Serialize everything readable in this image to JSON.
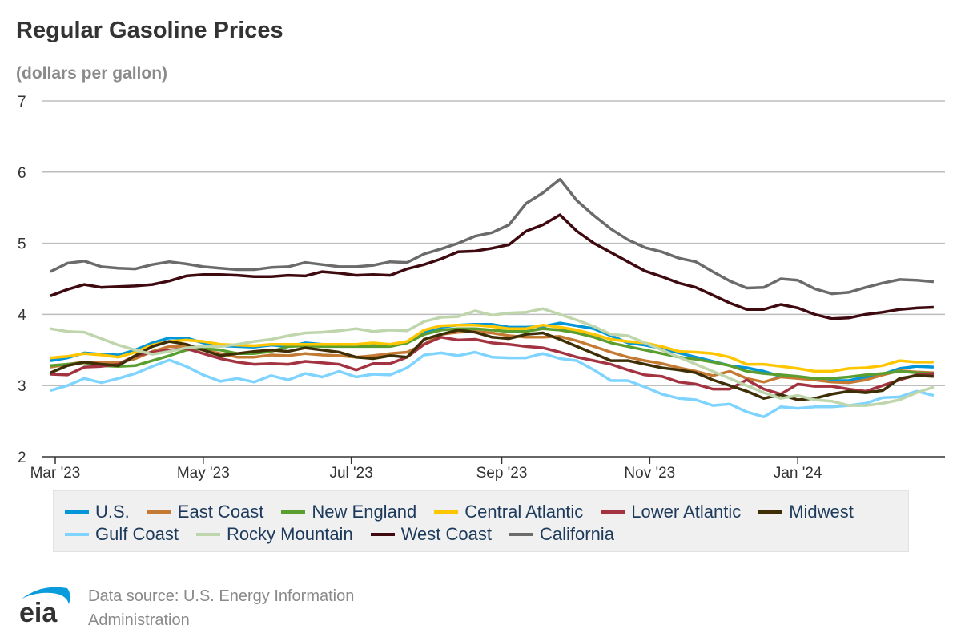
{
  "title": "Regular Gasoline Prices",
  "subtitle": "(dollars per gallon)",
  "source": "Data source: U.S. Energy Information Administration",
  "logo_text": "eia",
  "chart_data": {
    "type": "line",
    "title": "Regular Gasoline Prices",
    "ylabel": "(dollars per gallon)",
    "xlabel": "",
    "ylim": [
      2,
      7
    ],
    "yticks": [
      2,
      3,
      4,
      5,
      6,
      7
    ],
    "x_start": "2023-02-27",
    "x_frequency": "weekly",
    "xticks": [
      {
        "date": "2023-03-01",
        "label": "Mar '23"
      },
      {
        "date": "2023-05-01",
        "label": "May '23"
      },
      {
        "date": "2023-07-01",
        "label": "Jul '23"
      },
      {
        "date": "2023-09-01",
        "label": "Sep '23"
      },
      {
        "date": "2023-11-01",
        "label": "Nov '23"
      },
      {
        "date": "2024-01-01",
        "label": "Jan '24"
      }
    ],
    "grid": "horizontal",
    "legend": "bottom",
    "series": [
      {
        "name": "U.S.",
        "color": "#0096d7",
        "values": [
          3.35,
          3.39,
          3.46,
          3.44,
          3.43,
          3.5,
          3.6,
          3.67,
          3.67,
          3.6,
          3.56,
          3.55,
          3.54,
          3.57,
          3.55,
          3.6,
          3.58,
          3.57,
          3.57,
          3.57,
          3.57,
          3.6,
          3.75,
          3.82,
          3.85,
          3.86,
          3.86,
          3.82,
          3.82,
          3.83,
          3.88,
          3.84,
          3.8,
          3.7,
          3.6,
          3.57,
          3.52,
          3.46,
          3.4,
          3.34,
          3.28,
          3.25,
          3.2,
          3.13,
          3.11,
          3.1,
          3.07,
          3.07,
          3.12,
          3.16,
          3.24,
          3.27,
          3.26
        ]
      },
      {
        "name": "East Coast",
        "color": "#c47a32",
        "values": [
          3.26,
          3.3,
          3.33,
          3.33,
          3.32,
          3.38,
          3.48,
          3.55,
          3.55,
          3.5,
          3.45,
          3.4,
          3.4,
          3.43,
          3.42,
          3.45,
          3.43,
          3.42,
          3.4,
          3.42,
          3.45,
          3.47,
          3.58,
          3.72,
          3.75,
          3.76,
          3.74,
          3.7,
          3.68,
          3.68,
          3.69,
          3.63,
          3.55,
          3.47,
          3.4,
          3.35,
          3.31,
          3.25,
          3.2,
          3.14,
          3.2,
          3.1,
          3.05,
          3.12,
          3.1,
          3.08,
          3.05,
          3.04,
          3.08,
          3.15,
          3.21,
          3.19,
          3.18
        ]
      },
      {
        "name": "New England",
        "color": "#5a9e2f",
        "values": [
          3.28,
          3.3,
          3.32,
          3.28,
          3.27,
          3.28,
          3.35,
          3.42,
          3.5,
          3.52,
          3.5,
          3.45,
          3.45,
          3.48,
          3.55,
          3.56,
          3.55,
          3.55,
          3.55,
          3.55,
          3.55,
          3.6,
          3.72,
          3.78,
          3.8,
          3.8,
          3.78,
          3.76,
          3.76,
          3.8,
          3.78,
          3.74,
          3.68,
          3.6,
          3.55,
          3.5,
          3.45,
          3.4,
          3.37,
          3.33,
          3.28,
          3.2,
          3.17,
          3.15,
          3.13,
          3.1,
          3.1,
          3.12,
          3.15,
          3.17,
          3.2,
          3.18,
          3.17
        ]
      },
      {
        "name": "Central Atlantic",
        "color": "#ffc600",
        "values": [
          3.39,
          3.41,
          3.45,
          3.43,
          3.4,
          3.47,
          3.57,
          3.62,
          3.64,
          3.62,
          3.58,
          3.57,
          3.56,
          3.58,
          3.58,
          3.58,
          3.58,
          3.58,
          3.58,
          3.6,
          3.58,
          3.62,
          3.78,
          3.84,
          3.85,
          3.85,
          3.83,
          3.8,
          3.8,
          3.85,
          3.82,
          3.78,
          3.72,
          3.65,
          3.62,
          3.6,
          3.55,
          3.48,
          3.47,
          3.45,
          3.4,
          3.3,
          3.3,
          3.27,
          3.24,
          3.2,
          3.2,
          3.24,
          3.25,
          3.28,
          3.35,
          3.33,
          3.33
        ]
      },
      {
        "name": "Lower Atlantic",
        "color": "#a33340",
        "values": [
          3.16,
          3.15,
          3.26,
          3.27,
          3.3,
          3.42,
          3.47,
          3.5,
          3.52,
          3.45,
          3.38,
          3.33,
          3.3,
          3.31,
          3.3,
          3.34,
          3.32,
          3.3,
          3.22,
          3.31,
          3.31,
          3.4,
          3.58,
          3.68,
          3.64,
          3.65,
          3.6,
          3.58,
          3.55,
          3.53,
          3.47,
          3.4,
          3.35,
          3.3,
          3.22,
          3.15,
          3.13,
          3.05,
          3.02,
          2.95,
          2.95,
          3.08,
          2.95,
          2.88,
          3.02,
          2.99,
          2.99,
          2.95,
          2.92,
          3.0,
          3.08,
          3.15,
          3.17
        ]
      },
      {
        "name": "Midwest",
        "color": "#3d2e06",
        "values": [
          3.18,
          3.28,
          3.33,
          3.3,
          3.28,
          3.42,
          3.55,
          3.62,
          3.58,
          3.5,
          3.42,
          3.45,
          3.48,
          3.5,
          3.48,
          3.53,
          3.5,
          3.47,
          3.4,
          3.38,
          3.42,
          3.4,
          3.65,
          3.72,
          3.78,
          3.75,
          3.68,
          3.66,
          3.72,
          3.74,
          3.65,
          3.55,
          3.45,
          3.35,
          3.35,
          3.3,
          3.25,
          3.22,
          3.18,
          3.08,
          3.0,
          2.92,
          2.82,
          2.87,
          2.8,
          2.82,
          2.88,
          2.92,
          2.9,
          2.93,
          3.1,
          3.14,
          3.13
        ]
      },
      {
        "name": "Gulf Coast",
        "color": "#7fd4ff",
        "values": [
          2.93,
          3.0,
          3.1,
          3.04,
          3.1,
          3.17,
          3.27,
          3.36,
          3.27,
          3.15,
          3.06,
          3.1,
          3.05,
          3.14,
          3.08,
          3.17,
          3.12,
          3.2,
          3.12,
          3.16,
          3.15,
          3.25,
          3.43,
          3.46,
          3.42,
          3.47,
          3.4,
          3.39,
          3.39,
          3.45,
          3.38,
          3.35,
          3.22,
          3.07,
          3.07,
          2.98,
          2.88,
          2.82,
          2.8,
          2.72,
          2.74,
          2.63,
          2.56,
          2.7,
          2.68,
          2.7,
          2.7,
          2.72,
          2.75,
          2.83,
          2.84,
          2.92,
          2.86
        ]
      },
      {
        "name": "Rocky Mountain",
        "color": "#bfd6ac",
        "values": [
          3.8,
          3.76,
          3.75,
          3.66,
          3.57,
          3.5,
          3.44,
          3.48,
          3.53,
          3.55,
          3.55,
          3.58,
          3.62,
          3.65,
          3.7,
          3.74,
          3.75,
          3.77,
          3.8,
          3.76,
          3.78,
          3.77,
          3.9,
          3.96,
          3.97,
          4.05,
          3.99,
          4.02,
          4.03,
          4.08,
          4.0,
          3.92,
          3.83,
          3.72,
          3.7,
          3.6,
          3.5,
          3.4,
          3.3,
          3.2,
          3.1,
          3.0,
          2.9,
          2.82,
          2.86,
          2.8,
          2.78,
          2.72,
          2.72,
          2.75,
          2.8,
          2.9,
          2.98
        ]
      },
      {
        "name": "West Coast",
        "color": "#3e0a10",
        "values": [
          4.26,
          4.35,
          4.42,
          4.38,
          4.39,
          4.4,
          4.42,
          4.47,
          4.54,
          4.56,
          4.56,
          4.55,
          4.53,
          4.53,
          4.55,
          4.54,
          4.6,
          4.58,
          4.55,
          4.56,
          4.55,
          4.64,
          4.7,
          4.78,
          4.88,
          4.89,
          4.93,
          4.98,
          5.17,
          5.26,
          5.4,
          5.17,
          5.0,
          4.87,
          4.74,
          4.61,
          4.53,
          4.44,
          4.38,
          4.27,
          4.16,
          4.07,
          4.07,
          4.14,
          4.09,
          4.0,
          3.94,
          3.95,
          4.0,
          4.03,
          4.07,
          4.09,
          4.1
        ]
      },
      {
        "name": "California",
        "color": "#6b6b6b",
        "values": [
          4.6,
          4.72,
          4.75,
          4.67,
          4.65,
          4.64,
          4.7,
          4.74,
          4.71,
          4.67,
          4.65,
          4.63,
          4.63,
          4.66,
          4.67,
          4.73,
          4.7,
          4.67,
          4.67,
          4.69,
          4.74,
          4.73,
          4.85,
          4.92,
          5.0,
          5.1,
          5.15,
          5.26,
          5.56,
          5.71,
          5.9,
          5.6,
          5.39,
          5.2,
          5.05,
          4.94,
          4.88,
          4.79,
          4.74,
          4.6,
          4.47,
          4.37,
          4.38,
          4.5,
          4.48,
          4.36,
          4.29,
          4.31,
          4.38,
          4.44,
          4.49,
          4.48,
          4.46
        ]
      }
    ]
  }
}
